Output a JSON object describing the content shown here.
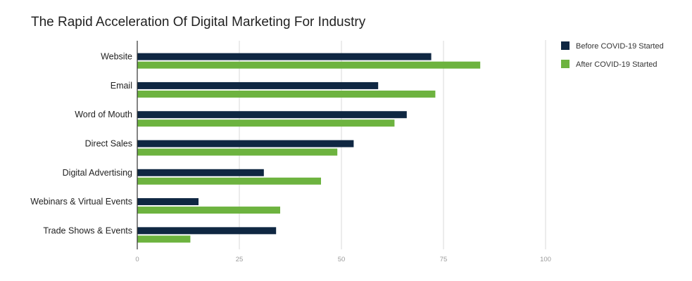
{
  "chart_data": {
    "type": "bar",
    "orientation": "horizontal",
    "title": "The Rapid Acceleration Of Digital Marketing For Industry",
    "xlabel": "",
    "ylabel": "",
    "categories": [
      "Website",
      "Email",
      "Word of Mouth",
      "Direct Sales",
      "Digital Advertising",
      "Webinars & Virtual Events",
      "Trade Shows & Events"
    ],
    "series": [
      {
        "name": "Before COVID-19 Started",
        "color": "#0f2742",
        "values": [
          72,
          59,
          66,
          53,
          31,
          15,
          34
        ]
      },
      {
        "name": "After COVID-19 Started",
        "color": "#6db33f",
        "values": [
          84,
          73,
          63,
          49,
          45,
          35,
          13
        ]
      }
    ],
    "xlim": [
      0,
      100
    ],
    "xticks": [
      0,
      25,
      50,
      75,
      100
    ],
    "grid": true,
    "legend_position": "right"
  }
}
